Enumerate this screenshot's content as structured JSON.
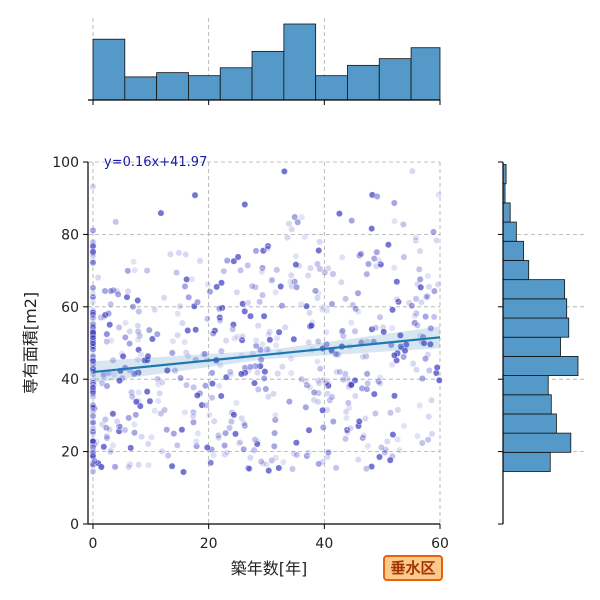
{
  "chart_data": {
    "type": "scatter",
    "title": "",
    "xlabel": "築年数[年]",
    "ylabel": "専有面積[m2]",
    "xlim": [
      0,
      60
    ],
    "ylim": [
      0,
      100
    ],
    "xticks": [
      "0",
      "20",
      "40",
      "60"
    ],
    "yticks": [
      "0",
      "20",
      "40",
      "60",
      "80",
      "100"
    ],
    "grid": true,
    "point_color": "#3a3ac0",
    "regression": {
      "equation": "y=0.16x+41.97",
      "slope": 0.16,
      "intercept": 41.97,
      "color": "#1f77b4"
    },
    "marginal_x_histogram": {
      "bins": [
        0,
        5.5,
        11,
        16.5,
        22,
        27.5,
        33,
        38.5,
        44,
        49.5,
        55,
        60.5
      ],
      "counts": [
        100,
        38,
        45,
        40,
        53,
        80,
        125,
        40,
        57,
        68,
        86
      ],
      "color": "#5499c7"
    },
    "marginal_y_histogram": {
      "bins": [
        14.5,
        19.8,
        25.1,
        30.4,
        35.7,
        41,
        46.3,
        51.6,
        56.9,
        62.2,
        67.5,
        72.8,
        78.1,
        83.4,
        88.7,
        94,
        99.3
      ],
      "counts": [
        46,
        66,
        52,
        47,
        44,
        73,
        56,
        64,
        62,
        60,
        25,
        20,
        13,
        7,
        2,
        3
      ],
      "color": "#5499c7"
    },
    "district_badge": "垂水区"
  }
}
